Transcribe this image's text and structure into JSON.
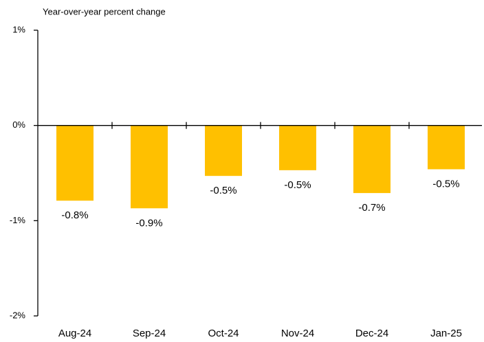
{
  "chart_data": {
    "type": "bar",
    "y_axis_label": "Year-over-year percent change",
    "categories": [
      "Aug-24",
      "Sep-24",
      "Oct-24",
      "Nov-24",
      "Dec-24",
      "Jan-25"
    ],
    "values": [
      -0.79,
      -0.87,
      -0.53,
      -0.47,
      -0.71,
      -0.46
    ],
    "value_labels": [
      "-0.8%",
      "-0.9%",
      "-0.5%",
      "-0.5%",
      "-0.7%",
      "-0.5%"
    ],
    "color": "#ffc000",
    "ylim": [
      -2,
      1
    ],
    "yticks": [
      {
        "value": 1,
        "label": "1%"
      },
      {
        "value": 0,
        "label": "0%"
      },
      {
        "value": -1,
        "label": "-1%"
      },
      {
        "value": -2,
        "label": "-2%"
      }
    ],
    "grid": false
  }
}
